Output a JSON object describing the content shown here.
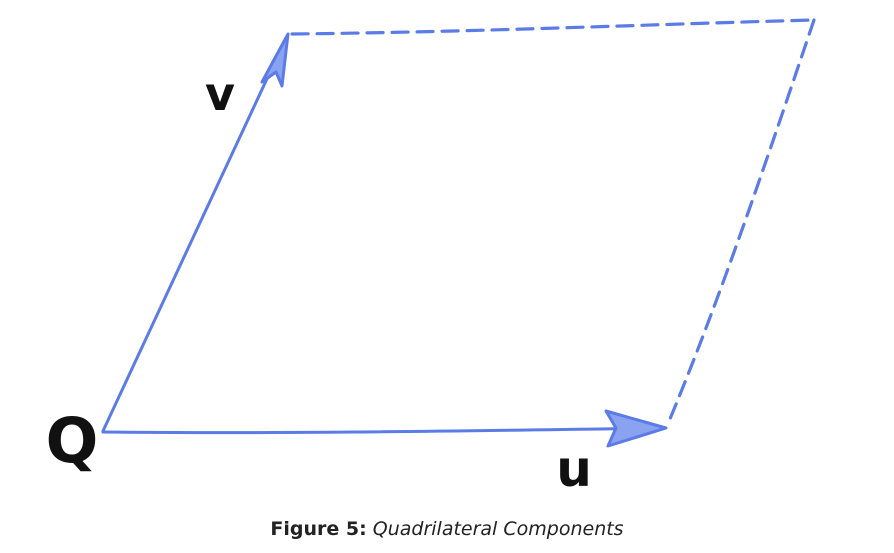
{
  "diagram": {
    "labels": {
      "origin": "Q",
      "vector_v": "v",
      "vector_u": "u"
    },
    "colors": {
      "vector": "#5b7be6",
      "label": "#111111"
    }
  },
  "caption": {
    "label": "Figure 5:",
    "title": "Quadrilateral Components"
  }
}
